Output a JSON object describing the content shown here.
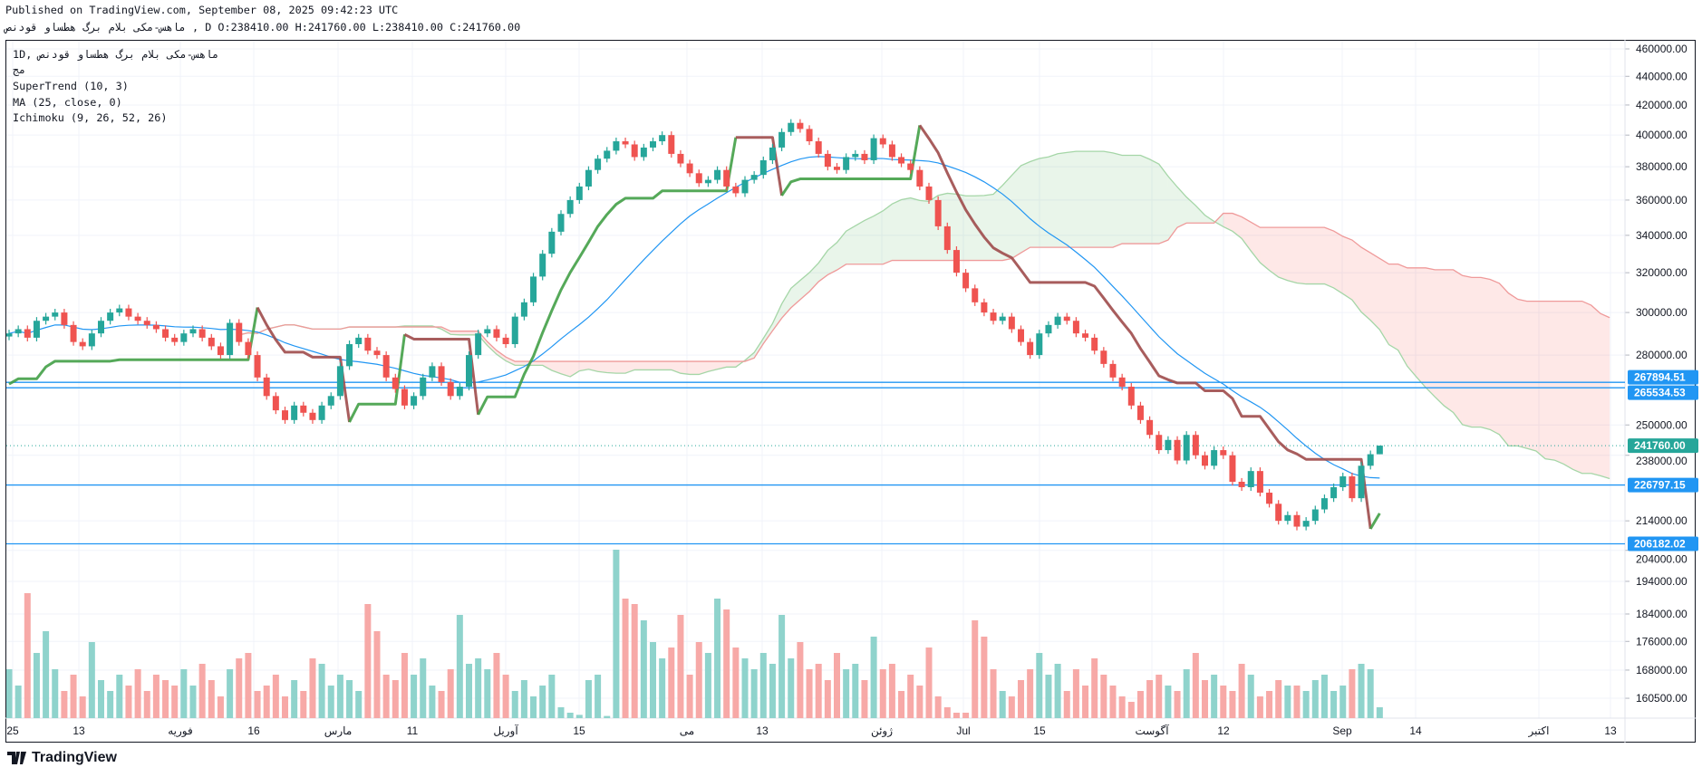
{
  "header": {
    "published": "Published on TradingView.com, September 08, 2025 09:42:23 UTC",
    "symbol": "ماهس-مکی بلام برگ هطساو قودنص",
    "ohlc": ", D O:238410.00 H:241760.00 L:238410.00 C:241760.00"
  },
  "legend": {
    "interval": "1D",
    "separator": ",",
    "symbol": "ماهس-مکی بلام برگ هطساو قودنص",
    "volume": "مج",
    "supertrend": "SuperTrend (10, 3)",
    "ma": "MA (25, close, 0)",
    "ichimoku": "Ichimoku (9, 26, 52, 26)"
  },
  "brand": {
    "name": "TradingView"
  },
  "colors": {
    "up": "#26a69a",
    "down": "#ef5350",
    "vol_up": "#8fd3cc",
    "vol_down": "#f7a9a7",
    "ma": "#2196f3",
    "st_up": "#43a047",
    "st_down": "#9e4b4b",
    "span_a": "#a5d6a7",
    "span_b": "#ef9a9a",
    "hline": "#2196f3",
    "last": "#26a69a"
  },
  "chart_data": {
    "type": "candlestick",
    "scale": "log",
    "ylim": [
      160500,
      460000
    ],
    "last_bar": {
      "open": 238410,
      "high": 241760,
      "low": 238410,
      "close": 241760
    },
    "close": [
      290000,
      292000,
      288000,
      296000,
      298000,
      300000,
      294000,
      286000,
      284000,
      290000,
      296000,
      300000,
      302000,
      298000,
      296000,
      294000,
      292000,
      288000,
      286000,
      290000,
      292000,
      288000,
      284000,
      280000,
      295000,
      286000,
      280000,
      270000,
      262000,
      256000,
      252000,
      258000,
      255000,
      252000,
      258000,
      262000,
      275000,
      285000,
      288000,
      282000,
      280000,
      270000,
      265000,
      258000,
      262000,
      270000,
      275000,
      268000,
      262000,
      266000,
      280000,
      290000,
      292000,
      288000,
      285000,
      298000,
      305000,
      318000,
      330000,
      342000,
      352000,
      360000,
      368000,
      378000,
      385000,
      390000,
      396000,
      394000,
      386000,
      392000,
      396000,
      400000,
      388000,
      382000,
      376000,
      370000,
      372000,
      378000,
      368000,
      364000,
      372000,
      375000,
      384000,
      392000,
      402000,
      408000,
      404000,
      396000,
      388000,
      380000,
      378000,
      386000,
      388000,
      384000,
      398000,
      394000,
      386000,
      382000,
      378000,
      368000,
      360000,
      345000,
      332000,
      320000,
      312000,
      305000,
      300000,
      296000,
      298000,
      292000,
      286000,
      280000,
      290000,
      294000,
      298000,
      296000,
      290000,
      288000,
      282000,
      276000,
      270000,
      266000,
      258000,
      252000,
      246000,
      240000,
      244000,
      236000,
      246000,
      238000,
      234000,
      240000,
      238000,
      228000,
      226000,
      232000,
      224000,
      220000,
      214000,
      216000,
      212000,
      214000,
      218000,
      222000,
      226000,
      230000,
      222000,
      234000,
      238410,
      241760
    ],
    "volume": [
      45,
      30,
      115,
      60,
      80,
      45,
      25,
      40,
      20,
      70,
      35,
      25,
      40,
      30,
      45,
      25,
      40,
      35,
      30,
      45,
      30,
      50,
      35,
      20,
      45,
      55,
      60,
      25,
      30,
      40,
      20,
      35,
      25,
      55,
      50,
      30,
      40,
      35,
      25,
      105,
      80,
      40,
      35,
      60,
      40,
      55,
      30,
      25,
      45,
      95,
      50,
      55,
      45,
      60,
      40,
      25,
      35,
      20,
      30,
      40,
      10,
      5,
      3,
      35,
      40,
      2,
      155,
      110,
      105,
      90,
      70,
      55,
      65,
      95,
      40,
      70,
      60,
      110,
      100,
      65,
      55,
      45,
      60,
      50,
      95,
      55,
      70,
      45,
      50,
      35,
      60,
      45,
      50,
      35,
      75,
      45,
      50,
      25,
      40,
      30,
      65,
      20,
      10,
      5,
      5,
      90,
      75,
      45,
      25,
      20,
      35,
      45,
      60,
      40,
      50,
      25,
      45,
      30,
      55,
      40,
      30,
      20,
      15,
      25,
      35,
      40,
      30,
      25,
      45,
      60,
      35,
      40,
      30,
      25,
      50,
      40,
      20,
      25,
      35,
      30,
      30,
      25,
      35,
      40,
      25,
      30,
      45,
      50,
      45,
      10
    ],
    "indicators": {
      "supertrend": {
        "period": 10,
        "multiplier": 3
      },
      "ma": {
        "length": 25,
        "source": "close",
        "offset": 0
      },
      "ichimoku": {
        "conversion": 9,
        "base": 26,
        "lagging_span": 52,
        "displacement": 26
      }
    },
    "price_ticks": [
      "460000.00",
      "440000.00",
      "420000.00",
      "400000.00",
      "380000.00",
      "360000.00",
      "340000.00",
      "320000.00",
      "300000.00",
      "280000.00",
      "250000.00",
      "238000.00",
      "214000.00",
      "204000.00",
      "194000.00",
      "184000.00",
      "176000.00",
      "168000.00",
      "160500.00"
    ],
    "hlines": [
      {
        "label": "267894.51",
        "value": 267894.51
      },
      {
        "label": "265534.53",
        "value": 265534.53
      },
      {
        "label": "226797.15",
        "value": 226797.15
      },
      {
        "label": "206182.02",
        "value": 206182.02
      }
    ],
    "last_price": {
      "label": "241760.00",
      "value": 241760
    },
    "time_labels": [
      "25",
      "13",
      "فوریه",
      "16",
      "مارس",
      "11",
      "آوریل",
      "15",
      "می",
      "13",
      "ژوئن",
      "Jul",
      "15",
      "آگوست",
      "12",
      "Sep",
      "14",
      "اکتبر",
      "13"
    ]
  }
}
